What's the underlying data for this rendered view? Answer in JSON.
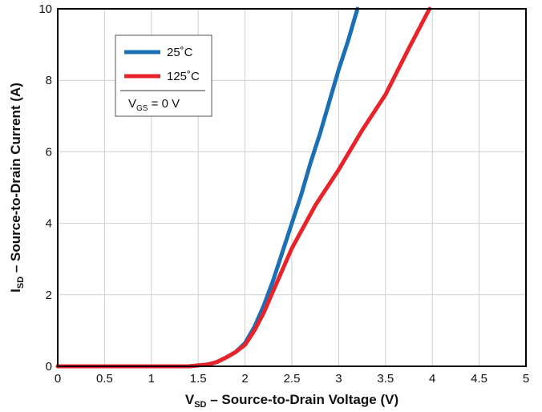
{
  "chart_data": {
    "type": "line",
    "title": "",
    "xlabel": {
      "main": "V",
      "sub": "SD",
      "rest": " – Source-to-Drain Voltage (V)"
    },
    "ylabel": {
      "main": "I",
      "sub": "SD",
      "rest": " – Source-to-Drain Current (A)"
    },
    "xlim": [
      0,
      5
    ],
    "ylim": [
      0,
      10
    ],
    "x_ticks": [
      "0",
      "0.5",
      "1",
      "1.5",
      "2",
      "2.5",
      "3",
      "3.5",
      "4",
      "4.5",
      "5"
    ],
    "y_ticks": [
      "0",
      "2",
      "4",
      "6",
      "8",
      "10"
    ],
    "grid": true,
    "legend_position": "top-left",
    "legend_note": {
      "main": "V",
      "sub": "GS",
      "rest": " = 0 V"
    },
    "series": [
      {
        "name": "25˚C",
        "color": "#1a6fb5",
        "points": [
          [
            0,
            0
          ],
          [
            0.5,
            0
          ],
          [
            1,
            0
          ],
          [
            1.4,
            0
          ],
          [
            1.6,
            0.05
          ],
          [
            1.7,
            0.12
          ],
          [
            1.8,
            0.25
          ],
          [
            1.9,
            0.4
          ],
          [
            2.0,
            0.65
          ],
          [
            2.1,
            1.1
          ],
          [
            2.2,
            1.7
          ],
          [
            2.3,
            2.4
          ],
          [
            2.4,
            3.2
          ],
          [
            2.5,
            4.0
          ],
          [
            2.6,
            4.8
          ],
          [
            2.7,
            5.7
          ],
          [
            2.8,
            6.5
          ],
          [
            2.9,
            7.4
          ],
          [
            3.0,
            8.3
          ],
          [
            3.1,
            9.1
          ],
          [
            3.2,
            10.0
          ]
        ]
      },
      {
        "name": "125˚C",
        "color": "#e8232a",
        "points": [
          [
            0,
            0
          ],
          [
            0.5,
            0
          ],
          [
            1,
            0
          ],
          [
            1.4,
            0
          ],
          [
            1.6,
            0.05
          ],
          [
            1.7,
            0.12
          ],
          [
            1.8,
            0.25
          ],
          [
            1.9,
            0.4
          ],
          [
            2.0,
            0.6
          ],
          [
            2.1,
            1.0
          ],
          [
            2.2,
            1.5
          ],
          [
            2.3,
            2.1
          ],
          [
            2.5,
            3.3
          ],
          [
            2.75,
            4.5
          ],
          [
            3.0,
            5.5
          ],
          [
            3.25,
            6.6
          ],
          [
            3.5,
            7.6
          ],
          [
            3.75,
            8.9
          ],
          [
            3.97,
            10.0
          ]
        ]
      }
    ]
  }
}
